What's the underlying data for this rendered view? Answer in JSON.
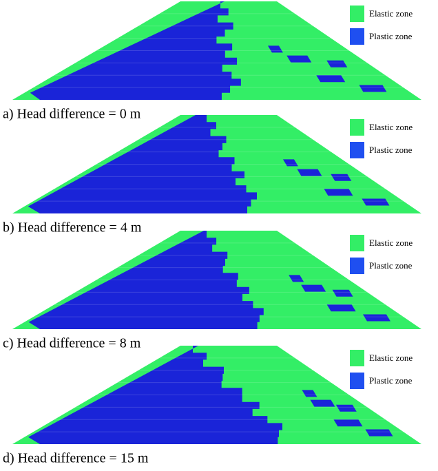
{
  "panels": [
    {
      "caption": "a) Head difference = 0 m",
      "legend": [
        "Elastic zone",
        "Plastic zone"
      ]
    },
    {
      "caption": "b) Head difference = 4 m",
      "legend": [
        "Elastic zone",
        "Plastic zone"
      ]
    },
    {
      "caption": "c) Head difference = 8 m",
      "legend": [
        "Elastic zone",
        "Plastic zone"
      ]
    },
    {
      "caption": "d) Head difference = 15 m",
      "legend": [
        "Elastic zone",
        "Plastic zone"
      ]
    }
  ]
}
